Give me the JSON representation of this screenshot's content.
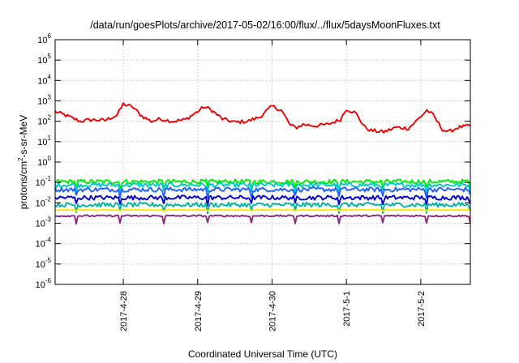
{
  "chart_data": {
    "type": "line",
    "title": "/data/run/goesPlots/archive/2017-05-02/16:00/flux/../flux/5daysMoonFluxes.txt",
    "xlabel": "Coordinated Universal Time (UTC)",
    "ylabel": {
      "prefix": "protons/cm",
      "superscript": "2",
      "suffix": "-s-sr-MeV"
    },
    "yscale": "log",
    "ylim": [
      1e-06,
      1000000.0
    ],
    "y_ticks": [
      {
        "mantissa": "10",
        "exponent": "-6",
        "value": -6
      },
      {
        "mantissa": "10",
        "exponent": "-5",
        "value": -5
      },
      {
        "mantissa": "10",
        "exponent": "-4",
        "value": -4
      },
      {
        "mantissa": "10",
        "exponent": "-3",
        "value": -3
      },
      {
        "mantissa": "10",
        "exponent": "-2",
        "value": -2
      },
      {
        "mantissa": "10",
        "exponent": "-1",
        "value": -1
      },
      {
        "mantissa": "10",
        "exponent": "0",
        "value": 0
      },
      {
        "mantissa": "10",
        "exponent": "1",
        "value": 1
      },
      {
        "mantissa": "10",
        "exponent": "2",
        "value": 2
      },
      {
        "mantissa": "10",
        "exponent": "3",
        "value": 3
      },
      {
        "mantissa": "10",
        "exponent": "4",
        "value": 4
      },
      {
        "mantissa": "10",
        "exponent": "5",
        "value": 5
      },
      {
        "mantissa": "10",
        "exponent": "6",
        "value": 6
      }
    ],
    "xlim": [
      "2017-04-27 02:00",
      "2017-05-02 16:00"
    ],
    "x_ticks": [
      {
        "label": "2017-4-28",
        "time": "2017-04-28 00:00"
      },
      {
        "label": "2017-4-29",
        "time": "2017-04-29 00:00"
      },
      {
        "label": "2017-4-30",
        "time": "2017-04-30 00:00"
      },
      {
        "label": "2017-5-1",
        "time": "2017-05-01 00:00"
      },
      {
        "label": "2017-5-2",
        "time": "2017-05-02 00:00"
      }
    ],
    "grid": true,
    "legend": "none",
    "series": [
      {
        "color": "#ee0000",
        "x": [
          "2017-04-27 02:00",
          "2017-04-27 06:00",
          "2017-04-27 10:00",
          "2017-04-27 14:00",
          "2017-04-27 18:00",
          "2017-04-27 22:00",
          "2017-04-28 00:00",
          "2017-04-28 03:00",
          "2017-04-28 06:00",
          "2017-04-28 09:00",
          "2017-04-28 12:00",
          "2017-04-28 16:00",
          "2017-04-28 20:00",
          "2017-04-29 00:00",
          "2017-04-29 02:00",
          "2017-04-29 04:00",
          "2017-04-29 08:00",
          "2017-04-29 12:00",
          "2017-04-29 16:00",
          "2017-04-29 20:00",
          "2017-04-30 00:00",
          "2017-04-30 03:00",
          "2017-04-30 06:00",
          "2017-04-30 08:00",
          "2017-04-30 10:00",
          "2017-04-30 14:00",
          "2017-04-30 18:00",
          "2017-04-30 22:00",
          "2017-05-01 00:00",
          "2017-05-01 03:00",
          "2017-05-01 06:00",
          "2017-05-01 08:00",
          "2017-05-01 12:00",
          "2017-05-01 16:00",
          "2017-05-01 20:00",
          "2017-05-01 23:00",
          "2017-05-02 02:00",
          "2017-05-02 04:00",
          "2017-05-02 07:00",
          "2017-05-02 09:00",
          "2017-05-02 12:00",
          "2017-05-02 16:00"
        ],
        "values": [
          300,
          180,
          100,
          120,
          110,
          200,
          700,
          500,
          180,
          100,
          130,
          100,
          120,
          300,
          500,
          400,
          130,
          90,
          100,
          160,
          550,
          350,
          60,
          50,
          70,
          60,
          70,
          120,
          400,
          250,
          50,
          35,
          30,
          50,
          45,
          120,
          350,
          200,
          40,
          30,
          50,
          60
        ]
      },
      {
        "color": "#00ee00",
        "x": [
          "2017-04-27 02:00",
          "2017-05-02 16:00"
        ],
        "values": [
          0.11,
          0.11
        ]
      },
      {
        "color": "#00c8c8",
        "x": [
          "2017-04-27 02:00",
          "2017-05-02 16:00"
        ],
        "values": [
          0.075,
          0.075
        ]
      },
      {
        "color": "#2060ff",
        "x": [
          "2017-04-27 02:00",
          "2017-05-02 16:00"
        ],
        "values": [
          0.045,
          0.045
        ]
      },
      {
        "color": "#0000c8",
        "x": [
          "2017-04-27 02:00",
          "2017-05-02 16:00"
        ],
        "values": [
          0.018,
          0.018
        ]
      },
      {
        "color": "#00b4a0",
        "x": [
          "2017-04-27 02:00",
          "2017-05-02 16:00"
        ],
        "values": [
          0.008,
          0.008
        ]
      },
      {
        "color": "#ffe600",
        "x": [
          "2017-04-27 02:00",
          "2017-05-02 16:00"
        ],
        "values": [
          0.0045,
          0.0045
        ]
      },
      {
        "color": "#8c2878",
        "x": [
          "2017-04-27 02:00",
          "2017-05-02 16:00"
        ],
        "values": [
          0.0023,
          0.0023
        ]
      }
    ]
  }
}
